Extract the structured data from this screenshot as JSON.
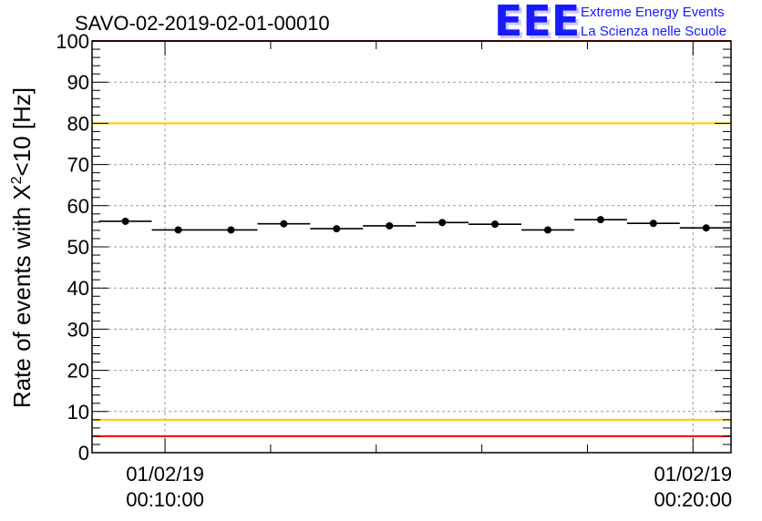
{
  "chart_data": {
    "type": "scatter",
    "title": "SAVO-02-2019-02-01-00010",
    "ylabel": "Rate of events with χ²<10 [Hz]",
    "xlabel": "",
    "ylim": [
      0,
      100
    ],
    "y_ticks": [
      "0",
      "10",
      "20",
      "30",
      "40",
      "50",
      "60",
      "70",
      "80",
      "90",
      "100"
    ],
    "x_ticks": [
      {
        "date": "01/02/19",
        "time": "00:10:00",
        "minute": 10
      },
      {
        "date": "01/02/19",
        "time": "00:20:00",
        "minute": 20
      }
    ],
    "xlim_minutes": [
      8.618,
      20.72
    ],
    "grid": true,
    "reference_lines": [
      {
        "value": 100,
        "color": "#ff0000"
      },
      {
        "value": 80,
        "color": "#ffcc00"
      },
      {
        "value": 8,
        "color": "#ffcc00"
      },
      {
        "value": 4,
        "color": "#ff0000"
      }
    ],
    "series": [
      {
        "marker_color": "#000000",
        "points": [
          {
            "minute": 9.25,
            "y": 56.2
          },
          {
            "minute": 10.25,
            "y": 54.1
          },
          {
            "minute": 11.25,
            "y": 54.1
          },
          {
            "minute": 12.25,
            "y": 55.6
          },
          {
            "minute": 13.25,
            "y": 54.4
          },
          {
            "minute": 14.25,
            "y": 55.1
          },
          {
            "minute": 15.25,
            "y": 55.9
          },
          {
            "minute": 16.25,
            "y": 55.5
          },
          {
            "minute": 17.25,
            "y": 54.1
          },
          {
            "minute": 18.25,
            "y": 56.6
          },
          {
            "minute": 19.25,
            "y": 55.7
          },
          {
            "minute": 20.25,
            "y": 54.6
          }
        ]
      }
    ]
  },
  "logo": {
    "mark": "EEE",
    "line1": "Extreme Energy Events",
    "line2": "La Scienza nelle Scuole",
    "color": "#1a1aff"
  }
}
